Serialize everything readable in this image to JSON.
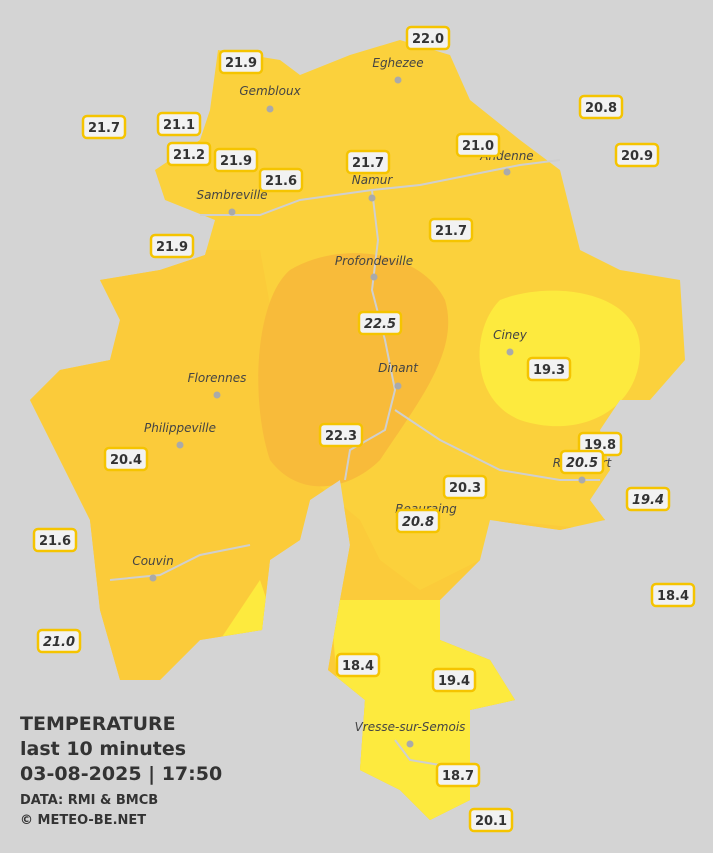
{
  "legend": {
    "title": "TEMPERATURE",
    "subtitle": "last 10 minutes",
    "datetime": "03-08-2025  |  17:50",
    "source": "DATA: RMI & BMCB",
    "credit": "© METEO-BE.NET"
  },
  "cities": [
    "Eghezee",
    "Gembloux",
    "Andenne",
    "Namur",
    "Sambreville",
    "Profondeville",
    "Ciney",
    "Dinant",
    "Florennes",
    "Philippeville",
    "Rochefort",
    "Beauraing",
    "Couvin",
    "Vresse-sur-Semois"
  ],
  "stations": [
    "22.0",
    "21.9",
    "20.8",
    "21.7",
    "21.1",
    "21.0",
    "20.9",
    "21.2",
    "21.9",
    "21.7",
    "21.6",
    "21.7",
    "21.9",
    "22.5",
    "19.3",
    "22.3",
    "19.8",
    "20.4",
    "20.5",
    "20.3",
    "19.4",
    "20.8",
    "21.6",
    "18.4",
    "21.0",
    "18.4",
    "19.4",
    "18.7",
    "20.1"
  ]
}
